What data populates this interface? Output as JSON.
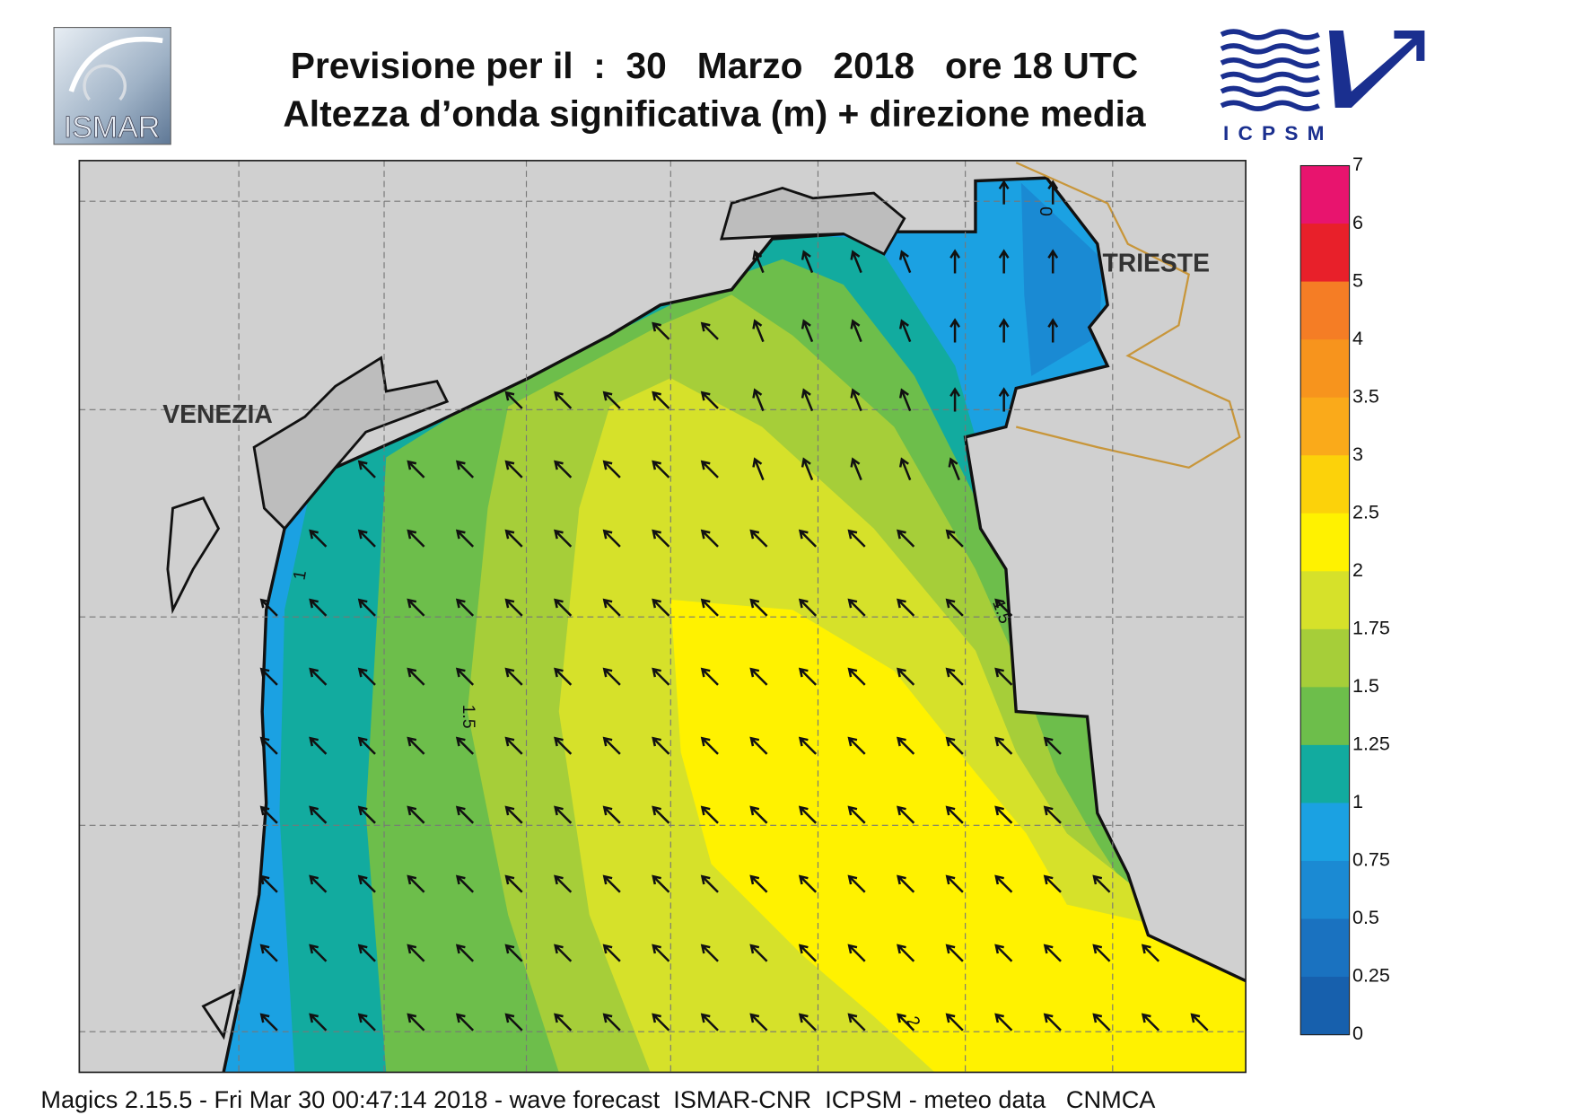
{
  "header": {
    "title_line1": "Previsione per il  :  30   Marzo   2018   ore 18 UTC",
    "title_line2": "Altezza d’onda significativa (m) + direzione media",
    "logo_left": "ISMAR",
    "logo_right": "ICPSM"
  },
  "map": {
    "cities": [
      "VENEZIA",
      "TRIESTE"
    ],
    "contour_labels": [
      "1",
      "1.5",
      "1.5",
      "2",
      "0"
    ]
  },
  "colorbar": {
    "labels": [
      "7",
      "6",
      "5",
      "4",
      "3.5",
      "3",
      "2.5",
      "2",
      "1.75",
      "1.5",
      "1.25",
      "1",
      "0.75",
      "0.5",
      "0.25",
      "0"
    ],
    "colors": [
      "#e8146e",
      "#e8202a",
      "#f57d25",
      "#f7941d",
      "#faaa1a",
      "#fcd20a",
      "#fff200",
      "#d6e12a",
      "#a6ce39",
      "#6dbe4b",
      "#12ab9f",
      "#1ba1e2",
      "#1b8ad3",
      "#1a72c0",
      "#1760ad"
    ]
  },
  "footer": "Magics 2.15.5 - Fri Mar 30 00:47:14 2018 - wave forecast  ISMAR-CNR  ICPSM - meteo data   CNMCA"
}
